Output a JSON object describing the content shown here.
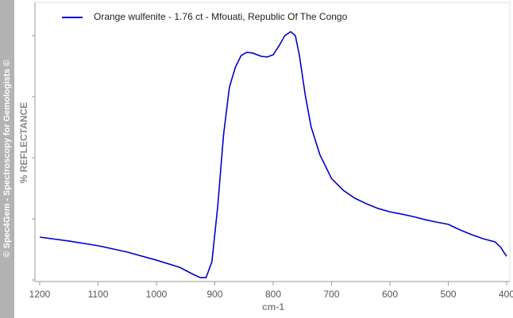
{
  "chart_data": {
    "type": "line",
    "watermark": "© Spec4Gem - Spectroscopy for Gemologists ©",
    "y_label": "% REFLECTANCE",
    "x_label": "cm-1",
    "xlim": [
      1200,
      400
    ],
    "xticks": [
      1200,
      1100,
      1000,
      900,
      800,
      700,
      600,
      500,
      400
    ],
    "ylim": [
      0,
      100
    ],
    "legend": "top-left",
    "x": [
      1200,
      1150,
      1100,
      1050,
      1000,
      960,
      940,
      925,
      915,
      905,
      895,
      885,
      875,
      865,
      855,
      845,
      835,
      820,
      810,
      800,
      790,
      780,
      770,
      762,
      755,
      745,
      735,
      720,
      700,
      680,
      660,
      640,
      620,
      600,
      580,
      560,
      540,
      520,
      500,
      480,
      460,
      440,
      420,
      410,
      405,
      400
    ],
    "series": [
      {
        "name": "Orange wulfenite - 1.76 ct - Mfouati, Republic Of The Congo",
        "color": "#0000cc",
        "values": [
          16.0,
          14.6,
          12.9,
          10.6,
          7.7,
          5.1,
          2.9,
          1.4,
          1.4,
          7.1,
          27.1,
          52.9,
          70.0,
          77.1,
          81.4,
          82.6,
          82.3,
          81.1,
          80.9,
          81.7,
          84.9,
          88.6,
          90.0,
          88.6,
          81.4,
          67.1,
          55.7,
          45.7,
          37.1,
          32.9,
          30.0,
          28.0,
          26.3,
          25.1,
          24.3,
          23.4,
          22.3,
          21.4,
          20.6,
          18.6,
          16.9,
          15.4,
          14.3,
          12.3,
          10.6,
          9.1
        ]
      }
    ]
  }
}
